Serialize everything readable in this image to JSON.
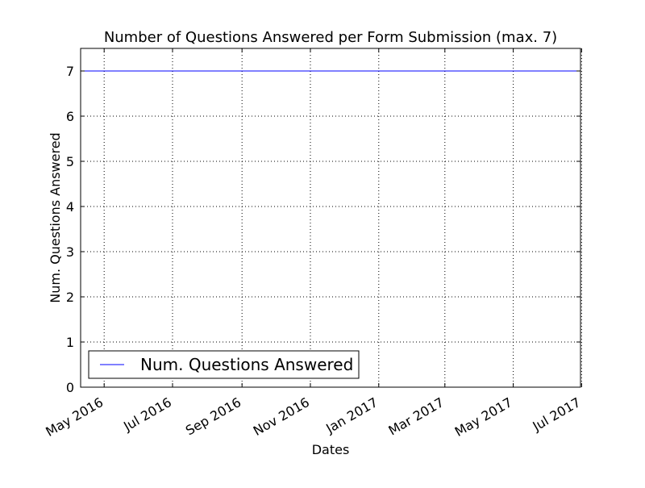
{
  "chart_data": {
    "type": "line",
    "title": "Number of Questions Answered per Form Submission (max. 7)",
    "xlabel": "Dates",
    "ylabel": "Num. Questions Answered",
    "x_range": [
      "2016-04-10",
      "2017-06-30"
    ],
    "ylim": [
      0,
      7.5
    ],
    "x_ticks": [
      {
        "date": "2016-05-01",
        "label": "May 2016"
      },
      {
        "date": "2016-07-01",
        "label": "Jul 2016"
      },
      {
        "date": "2016-09-01",
        "label": "Sep 2016"
      },
      {
        "date": "2016-11-01",
        "label": "Nov 2016"
      },
      {
        "date": "2017-01-01",
        "label": "Jan 2017"
      },
      {
        "date": "2017-03-01",
        "label": "Mar 2017"
      },
      {
        "date": "2017-05-01",
        "label": "May 2017"
      },
      {
        "date": "2017-07-01",
        "label": "Jul 2017"
      }
    ],
    "y_ticks": [
      0,
      1,
      2,
      3,
      4,
      5,
      6,
      7
    ],
    "grid": true,
    "legend_position": "lower-left",
    "series": [
      {
        "name": "Num. Questions Answered",
        "color": "#0000ff",
        "points": [
          {
            "x": "2016-04-10",
            "y": 7
          },
          {
            "x": "2017-06-30",
            "y": 7
          }
        ]
      }
    ]
  }
}
